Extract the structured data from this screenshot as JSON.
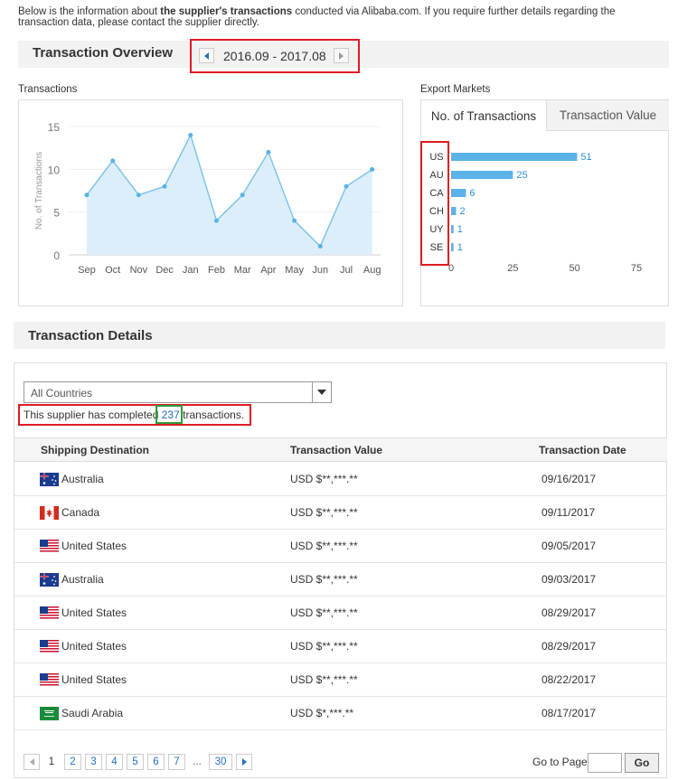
{
  "intro": {
    "prefix": "Below is the information about ",
    "bold": "the supplier's transactions",
    "suffix": " conducted via Alibaba.com. If you require further details regarding the transaction data, please contact the supplier directly."
  },
  "overview": {
    "title": "Transaction Overview",
    "date_range": "2016.09 - 2017.08",
    "transactions_label": "Transactions",
    "export_markets_label": "Export Markets",
    "tabs": [
      "No. of Transactions",
      "Transaction Value"
    ]
  },
  "chart_data": [
    {
      "type": "area",
      "title": "",
      "xlabel": "",
      "ylabel": "No. of Transactions",
      "categories": [
        "Sep",
        "Oct",
        "Nov",
        "Dec",
        "Jan",
        "Feb",
        "Mar",
        "Apr",
        "May",
        "Jun",
        "Jul",
        "Aug"
      ],
      "values": [
        7,
        11,
        7,
        8,
        14,
        4,
        7,
        12,
        4,
        1,
        8,
        10
      ],
      "yticks": [
        "0",
        "5",
        "10",
        "15"
      ],
      "ylim": [
        0,
        15
      ],
      "grid": true,
      "colors": {
        "line": "#7fc4ea",
        "fill": "#d8ecf9",
        "point": "#5bb2e6"
      }
    },
    {
      "type": "bar",
      "orientation": "horizontal",
      "categories": [
        "US",
        "AU",
        "CA",
        "CH",
        "UY",
        "SE"
      ],
      "values": [
        51,
        25,
        6,
        2,
        1,
        1
      ],
      "xticks": [
        "0",
        "25",
        "50",
        "75"
      ],
      "xlim": [
        0,
        75
      ],
      "colors": {
        "bar": "#5bb2e6",
        "label": "#2a90d8"
      }
    }
  ],
  "details": {
    "title": "Transaction Details",
    "country_filter": "All Countries",
    "summary_prefix": "This supplier has completed ",
    "summary_count": "237",
    "summary_suffix": " transactions.",
    "columns": [
      "Shipping Destination",
      "Transaction Value",
      "Transaction Date"
    ],
    "rows": [
      {
        "flag": "australia-flag-icon",
        "country": "Australia",
        "value": "USD $**,***.**",
        "date": "09/16/2017"
      },
      {
        "flag": "canada-flag-icon",
        "country": "Canada",
        "value": "USD $**,***.**",
        "date": "09/11/2017"
      },
      {
        "flag": "usa-flag-icon",
        "country": "United States",
        "value": "USD $**,***.**",
        "date": "09/05/2017"
      },
      {
        "flag": "australia-flag-icon",
        "country": "Australia",
        "value": "USD $**,***.**",
        "date": "09/03/2017"
      },
      {
        "flag": "usa-flag-icon",
        "country": "United States",
        "value": "USD $**,***.**",
        "date": "08/29/2017"
      },
      {
        "flag": "usa-flag-icon",
        "country": "United States",
        "value": "USD $**,***.**",
        "date": "08/29/2017"
      },
      {
        "flag": "usa-flag-icon",
        "country": "United States",
        "value": "USD $**,***.**",
        "date": "08/22/2017"
      },
      {
        "flag": "saudi-flag-icon",
        "country": "Saudi Arabia",
        "value": "USD $*,***.**",
        "date": "08/17/2017"
      }
    ]
  },
  "pagination": {
    "current": "1",
    "pages": [
      "2",
      "3",
      "4",
      "5",
      "6",
      "7"
    ],
    "ellipsis": "...",
    "last": "30",
    "goto_label": "Go to Page",
    "go_label": "Go"
  },
  "accent": {
    "highlight_red": "#e01b24",
    "highlight_green": "#2e9b3a",
    "link": "#1f6fc0"
  }
}
